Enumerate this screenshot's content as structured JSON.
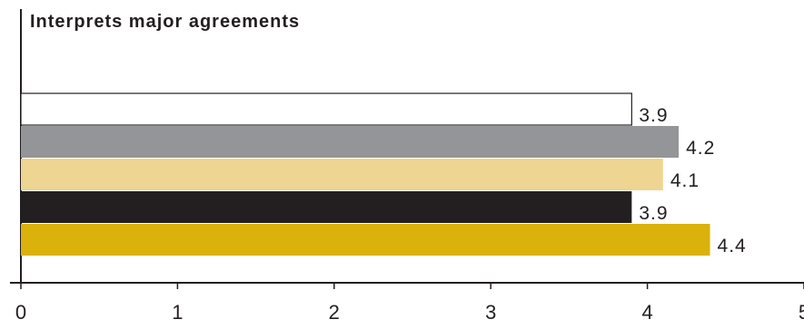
{
  "chart_data": {
    "type": "bar",
    "orientation": "horizontal",
    "title": "Interprets major agreements",
    "xlabel": "",
    "ylabel": "",
    "xlim": [
      0,
      5
    ],
    "x_ticks": [
      "0",
      "1",
      "2",
      "3",
      "4",
      "5"
    ],
    "grid": false,
    "series": [
      {
        "value": 3.9,
        "label": "3.9",
        "color": "#ffffff",
        "stroke": "#231f20"
      },
      {
        "value": 4.2,
        "label": "4.2",
        "color": "#939598",
        "stroke": "none"
      },
      {
        "value": 4.1,
        "label": "4.1",
        "color": "#efd592",
        "stroke": "none"
      },
      {
        "value": 3.9,
        "label": "3.9",
        "color": "#231f20",
        "stroke": "none"
      },
      {
        "value": 4.4,
        "label": "4.4",
        "color": "#dbb10b",
        "stroke": "none"
      }
    ],
    "colors": {
      "axis": "#231f20",
      "text": "#231f20"
    }
  }
}
